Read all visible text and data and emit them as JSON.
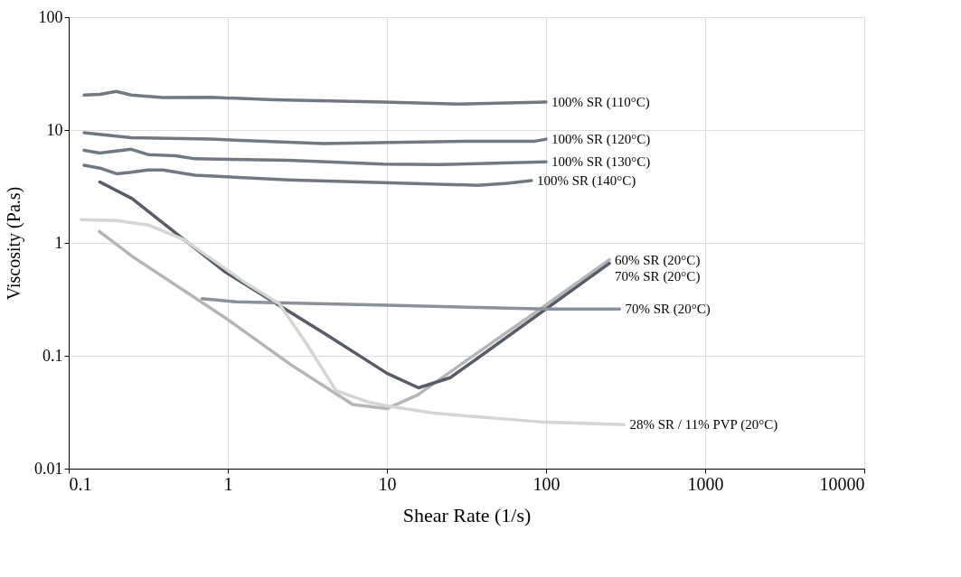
{
  "chart_data": {
    "type": "line",
    "xlabel": "Shear Rate (1/s)",
    "ylabel": "Viscosity (Pa.s)",
    "log": "xy",
    "grid": true,
    "marker": "none",
    "line_style": "solid",
    "xlim": [
      0.1,
      10000
    ],
    "xticks": [
      0.1,
      1,
      10,
      100,
      1000,
      10000
    ],
    "ylim": [
      0.01,
      100
    ],
    "yticks": [
      0.01,
      0.1,
      1,
      10,
      100
    ],
    "series": [
      {
        "name": "100% SR (110°C)",
        "color": "#717883",
        "x": [
          0.125,
          0.157,
          0.199,
          0.247,
          0.39,
          0.78,
          1.97,
          9.5,
          28,
          100
        ],
        "values": [
          20.4,
          20.7,
          22.0,
          20.4,
          19.4,
          19.5,
          18.5,
          17.7,
          17.0,
          17.7
        ]
      },
      {
        "name": "100% SR (120°C)",
        "color": "#717883",
        "x": [
          0.125,
          0.247,
          0.78,
          4,
          30,
          85,
          100
        ],
        "values": [
          9.47,
          8.56,
          8.3,
          7.6,
          7.96,
          7.96,
          8.3
        ]
      },
      {
        "name": "100% SR (130°C)",
        "color": "#717883",
        "x": [
          0.125,
          0.157,
          0.247,
          0.315,
          0.47,
          0.62,
          2.4,
          9.5,
          21,
          100
        ],
        "values": [
          6.6,
          6.25,
          6.75,
          6.06,
          5.92,
          5.56,
          5.4,
          4.98,
          4.94,
          5.23
        ]
      },
      {
        "name": "100% SR (140°C)",
        "color": "#717883",
        "x": [
          0.125,
          0.157,
          0.2,
          0.247,
          0.315,
          0.39,
          0.62,
          2.4,
          9.5,
          37,
          57,
          81
        ],
        "values": [
          4.87,
          4.6,
          4.1,
          4.23,
          4.43,
          4.43,
          3.98,
          3.62,
          3.42,
          3.24,
          3.37,
          3.56
        ]
      },
      {
        "name": "60% SR (20°C)",
        "color": "#b3b5b7",
        "x": [
          0.156,
          0.254,
          0.95,
          2.5,
          6.1,
          10,
          15.6,
          24,
          92,
          250
        ],
        "values": [
          1.26,
          0.75,
          0.22,
          0.083,
          0.037,
          0.034,
          0.045,
          0.069,
          0.26,
          0.71
        ]
      },
      {
        "name": "70% SR (20°C)",
        "color": "#585c66",
        "x": [
          0.157,
          0.25,
          0.95,
          4.2,
          10,
          15.8,
          25,
          39,
          250
        ],
        "values": [
          3.47,
          2.47,
          0.56,
          0.153,
          0.07,
          0.052,
          0.064,
          0.1,
          0.66
        ]
      },
      {
        "name": "70% SR (20°C)",
        "color": "#8c9098",
        "x": [
          0.69,
          1.13,
          10,
          100,
          290
        ],
        "values": [
          0.32,
          0.3,
          0.28,
          0.26,
          0.26
        ]
      },
      {
        "name": "28% SR / 11% PVP (20°C)",
        "color": "#d4d5d6",
        "x": [
          0.12,
          0.2,
          0.317,
          0.53,
          1.3,
          2.1,
          3.1,
          4.8,
          7.6,
          10,
          19.6,
          92,
          310
        ],
        "values": [
          1.61,
          1.58,
          1.44,
          1.07,
          0.44,
          0.29,
          0.13,
          0.049,
          0.039,
          0.036,
          0.031,
          0.026,
          0.0246
        ]
      }
    ]
  }
}
